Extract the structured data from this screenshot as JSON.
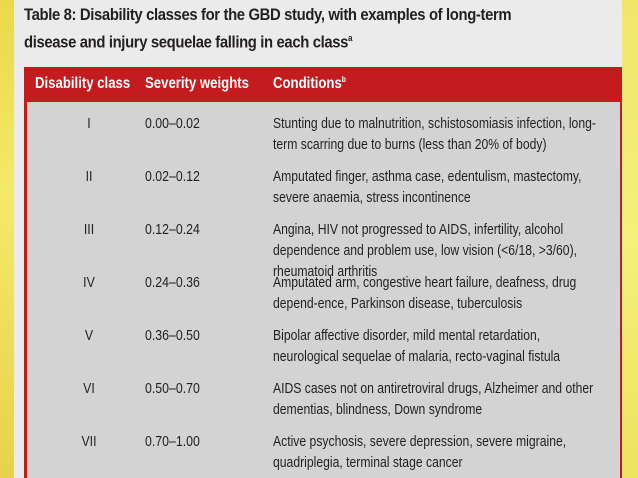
{
  "title_main": "Table 8: Disability classes for the GBD study, with examples of long-term disease and injury sequelae falling in each class",
  "title_sup": "a",
  "columns": {
    "class": "Disability class",
    "weights": "Severity weights",
    "conditions": "Conditions",
    "conditions_sup": "b"
  },
  "rows": [
    {
      "class": "I",
      "weights": "0.00–0.02",
      "conditions": "Stunting due to malnutrition, schistosomiasis infection, long-term scarring due to burns (less than 20% of body)"
    },
    {
      "class": "II",
      "weights": "0.02–0.12",
      "conditions": "Amputated finger, asthma case, edentulism, mastectomy, severe anaemia, stress incontinence"
    },
    {
      "class": "III",
      "weights": "0.12–0.24",
      "conditions": "Angina, HIV not progressed to AIDS, infertility, alcohol dependence and problem use, low vision (<6/18, >3/60), rheumatoid arthritis"
    },
    {
      "class": "IV",
      "weights": "0.24–0.36",
      "conditions": "Amputated arm, congestive heart failure, deafness, drug depend-ence, Parkinson disease, tuberculosis"
    },
    {
      "class": "V",
      "weights": "0.36–0.50",
      "conditions": "Bipolar affective disorder, mild mental retardation, neurological sequelae of malaria, recto-vaginal fistula"
    },
    {
      "class": "VI",
      "weights": "0.50–0.70",
      "conditions": "AIDS cases not on antiretroviral drugs, Alzheimer and other dementias, blindness, Down syndrome"
    },
    {
      "class": "VII",
      "weights": "0.70–1.00",
      "conditions": "Active psychosis, severe depression, severe migraine, quadriplegia, terminal stage cancer"
    }
  ],
  "colors": {
    "header_bg": "#c41b1e",
    "table_bg": "#d3d3d3",
    "panel_bg": "#ebebeb",
    "background": "#f0ec6a"
  }
}
